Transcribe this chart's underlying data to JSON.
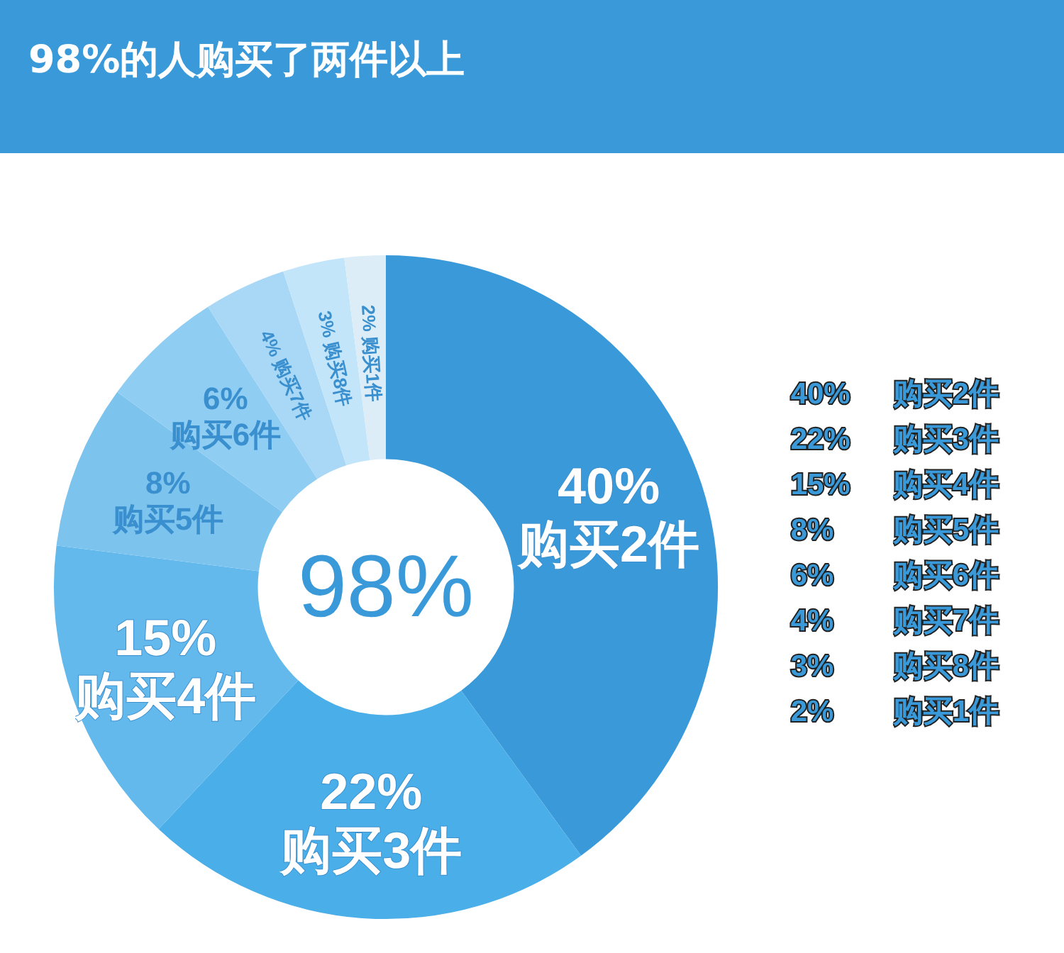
{
  "chart_data": {
    "type": "donut",
    "title": "98%的人购买了两件以上",
    "categories": [
      "购买2件",
      "购买3件",
      "购买4件",
      "购买5件",
      "购买6件",
      "购买7件",
      "购买8件",
      "购买1件"
    ],
    "values": [
      40,
      22,
      15,
      8,
      6,
      4,
      3,
      2
    ],
    "value_labels": [
      "40%",
      "22%",
      "15%",
      "8%",
      "6%",
      "4%",
      "3%",
      "2%"
    ],
    "colors": [
      "#3a9ad9",
      "#4aaee8",
      "#64b9ec",
      "#7cc3ee",
      "#90cdf2",
      "#a8d8f5",
      "#c3e5f9",
      "#dcedf8"
    ],
    "annotations": [
      "98%"
    ]
  }
}
